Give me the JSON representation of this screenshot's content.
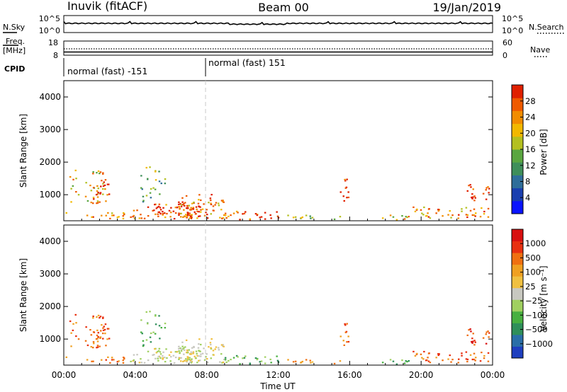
{
  "header": {
    "site": "Inuvik (fitACF)",
    "beam": "Beam 00",
    "date": "19/Jan/2019"
  },
  "strip": {
    "nsky_label": "N.Sky",
    "nsearch_label": "N.Search",
    "freq_label_1": "Freq.",
    "freq_label_2": "[MHz]",
    "nave_label": "Nave",
    "cpid_label": "CPID",
    "n_ticks": [
      "10^5",
      "10^0"
    ],
    "freq_ticks": [
      "18",
      "8"
    ],
    "nave_ticks": [
      "60",
      "0"
    ],
    "cpid_segments": [
      "normal (fast) -151",
      "normal (fast) 151"
    ]
  },
  "chart_data": [
    {
      "type": "heatmap",
      "ylabel": "Slant Range [km]",
      "ylim": [
        200,
        4500
      ],
      "xlim": [
        0,
        24
      ],
      "yticks": [
        "1000",
        "2000",
        "3000",
        "4000"
      ],
      "colorbar": {
        "label": "Power [dB]",
        "ticks": [
          "4",
          "8",
          "12",
          "16",
          "20",
          "24",
          "28"
        ],
        "colors": [
          "#0a14ff",
          "#1a3fb0",
          "#2f6e9a",
          "#3f8f5a",
          "#5aa640",
          "#b4c020",
          "#f2b800",
          "#f28c00",
          "#ef5a00",
          "#e02000"
        ]
      }
    },
    {
      "type": "heatmap",
      "ylabel": "Slant Range [km]",
      "xlabel": "Time UT",
      "ylim": [
        200,
        4500
      ],
      "xlim": [
        0,
        24
      ],
      "yticks": [
        "1000",
        "2000",
        "3000",
        "4000"
      ],
      "xticks": [
        "00:00",
        "04:00",
        "08:00",
        "12:00",
        "16:00",
        "20:00",
        "00:00"
      ],
      "colorbar": {
        "label": "Velocity [m s⁻¹]",
        "ticks": [
          "1000",
          "500",
          "100",
          "25",
          "−25",
          "−100",
          "−500",
          "−1000"
        ],
        "colors": [
          "#1f3fbf",
          "#2a6fa8",
          "#2f8f5a",
          "#48b040",
          "#a0d060",
          "#c8c8c0",
          "#f0c040",
          "#f0a020",
          "#f07010",
          "#e83010",
          "#d81010"
        ]
      }
    }
  ]
}
